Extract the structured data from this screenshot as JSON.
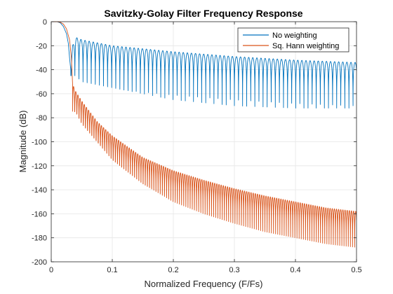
{
  "chart_data": {
    "type": "line",
    "title": "Savitzky-Golay Filter Frequency Response",
    "xlabel": "Normalized Frequency (F/Fs)",
    "ylabel": "Magnitude (dB)",
    "xlim": [
      0,
      0.5
    ],
    "ylim": [
      -200,
      0
    ],
    "xticks": [
      0,
      0.1,
      0.2,
      0.3,
      0.4,
      0.5
    ],
    "xtick_labels": [
      "0",
      "0.1",
      "0.2",
      "0.3",
      "0.4",
      "0.5"
    ],
    "yticks": [
      0,
      -20,
      -40,
      -60,
      -80,
      -100,
      -120,
      -140,
      -160,
      -180,
      -200
    ],
    "ytick_labels": [
      "0",
      "-20",
      "-40",
      "-60",
      "-80",
      "-100",
      "-120",
      "-140",
      "-160",
      "-180",
      "-200"
    ],
    "grid": true,
    "legend_position": "top-right",
    "series": [
      {
        "name": "No weighting",
        "color": "#0072BD",
        "x": [
          0,
          0.005,
          0.01,
          0.015,
          0.02,
          0.025,
          0.028,
          0.03,
          0.032,
          0.035,
          0.04,
          0.05,
          0.1,
          0.2,
          0.3,
          0.4,
          0.5
        ],
        "envelope_db": [
          0,
          0,
          0,
          -1,
          -4,
          -10,
          -18,
          -30,
          -40,
          -20,
          -13,
          -15,
          -20,
          -25,
          -29,
          -32,
          -34
        ],
        "notch_depth_db": [
          -45,
          -45,
          -45,
          -45,
          -45,
          -45,
          -45,
          -45,
          -45,
          -45,
          -45,
          -50,
          -55,
          -65,
          -70,
          -72,
          -72
        ],
        "lobe_width": 0.0067
      },
      {
        "name": "Sq. Hann weighting",
        "color": "#D95319",
        "x": [
          0,
          0.005,
          0.01,
          0.015,
          0.02,
          0.025,
          0.03,
          0.033,
          0.035,
          0.04,
          0.05,
          0.075,
          0.1,
          0.15,
          0.2,
          0.25,
          0.3,
          0.35,
          0.4,
          0.45,
          0.5
        ],
        "envelope_db": [
          0,
          0,
          0,
          -0.5,
          -2,
          -6,
          -15,
          -30,
          -52,
          -58,
          -66,
          -83,
          -95,
          -113,
          -124,
          -132,
          -139,
          -145,
          -150,
          -155,
          -158
        ],
        "notch_depth_db": [
          -75,
          -75,
          -75,
          -75,
          -75,
          -75,
          -75,
          -75,
          -75,
          -75,
          -85,
          -100,
          -115,
          -135,
          -150,
          -160,
          -168,
          -175,
          -180,
          -185,
          -188
        ],
        "lobe_width": 0.0035
      }
    ]
  }
}
